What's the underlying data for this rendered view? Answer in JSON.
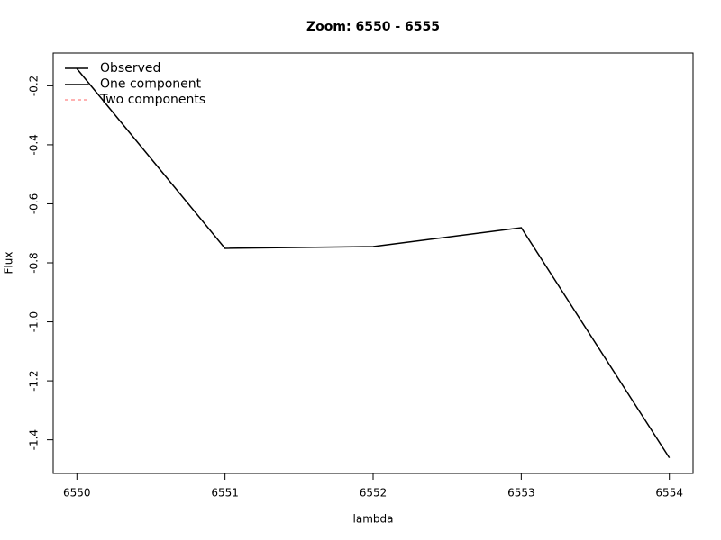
{
  "chart_data": {
    "type": "line",
    "title": "Zoom: 6550 - 6555",
    "xlabel": "lambda",
    "ylabel": "Flux",
    "x": [
      6550,
      6551,
      6552,
      6553,
      6554
    ],
    "series": [
      {
        "name": "Observed",
        "color": "#000000",
        "values": [
          -0.142,
          -0.751,
          -0.745,
          -0.681,
          -1.461
        ]
      },
      {
        "name": "One component",
        "color": "#000000",
        "values": [
          null,
          null,
          null,
          null,
          null
        ]
      },
      {
        "name": "Two components",
        "color": "#ff6666",
        "values": [
          null,
          null,
          null,
          null,
          null
        ]
      }
    ],
    "xlim": [
      6549.84,
      6554.16
    ],
    "xticks": [
      6550,
      6551,
      6552,
      6553,
      6554
    ],
    "ylim": [
      -1.514,
      -0.089
    ],
    "yticks": [
      {
        "value": -1.4,
        "label": "-1.4"
      },
      {
        "value": -1.2,
        "label": "-1.2"
      },
      {
        "value": -1.0,
        "label": "-1.0"
      },
      -0.8,
      -0.6,
      -0.4,
      -0.2
    ],
    "legend": "top-left",
    "grid": false
  }
}
